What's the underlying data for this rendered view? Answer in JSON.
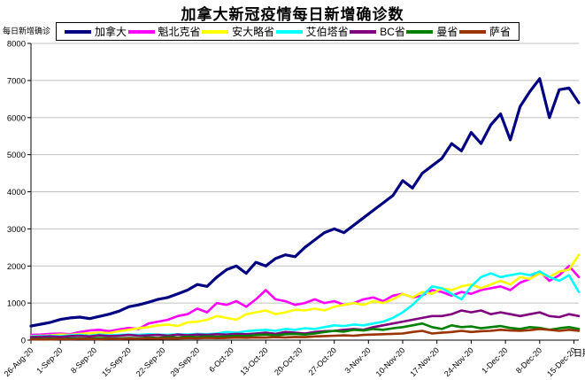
{
  "title": "加拿大新冠疫情每日新增确诊数",
  "y_axis": {
    "unit_label": "每日新增确诊",
    "min": 0,
    "max": 8000,
    "step": 1000
  },
  "x_axis": {
    "title": "日期",
    "tick_labels": [
      "26-Aug-20",
      "1-Sep-20",
      "8-Sep-20",
      "15-Sep-20",
      "22-Sep-20",
      "29-Sep-20",
      "6-Oct-20",
      "13-Oct-20",
      "20-Oct-20",
      "27-Oct-20",
      "3-Nov-20",
      "10-Nov-20",
      "17-Nov-20",
      "24-Nov-20",
      "1-Dec-20",
      "8-Dec-20",
      "15-Dec-20"
    ],
    "tick_days": [
      0,
      6,
      13,
      20,
      27,
      34,
      41,
      48,
      55,
      62,
      69,
      76,
      83,
      90,
      97,
      104,
      111
    ]
  },
  "colors": {
    "axis": "#000000",
    "gridline": "#c0c0c0",
    "background": "#ffffff"
  },
  "chart_data": {
    "type": "line",
    "title": "加拿大新冠疫情每日新增确诊数",
    "ylabel": "每日新增确诊",
    "xlabel": "日期",
    "ylim": [
      0,
      8000
    ],
    "grid": true,
    "legend_position": "top",
    "x_description": "day index, 0 = 26-Aug-20, values estimated every 2 days through 16-Dec-20",
    "days": [
      0,
      2,
      4,
      6,
      8,
      10,
      12,
      14,
      16,
      18,
      20,
      22,
      24,
      26,
      28,
      30,
      32,
      34,
      36,
      38,
      40,
      42,
      44,
      46,
      48,
      50,
      52,
      54,
      56,
      58,
      60,
      62,
      64,
      66,
      68,
      70,
      72,
      74,
      76,
      78,
      80,
      82,
      84,
      86,
      88,
      90,
      92,
      94,
      96,
      98,
      100,
      102,
      104,
      106,
      108,
      110,
      112
    ],
    "series": [
      {
        "key": "canada",
        "name": "加拿大",
        "color": "#000080",
        "values": [
          380,
          430,
          480,
          560,
          600,
          620,
          580,
          640,
          700,
          780,
          900,
          950,
          1020,
          1100,
          1150,
          1250,
          1350,
          1500,
          1450,
          1700,
          1900,
          2000,
          1800,
          2100,
          2000,
          2200,
          2300,
          2250,
          2500,
          2700,
          2900,
          3000,
          2900,
          3100,
          3300,
          3500,
          3700,
          3900,
          4300,
          4100,
          4500,
          4700,
          4900,
          5300,
          5100,
          5600,
          5300,
          5800,
          6100,
          5400,
          6300,
          6700,
          7050,
          6000,
          6750,
          6800,
          6400
        ]
      },
      {
        "key": "quebec",
        "name": "魁北克省",
        "color": "#ff00ff",
        "values": [
          140,
          150,
          170,
          180,
          160,
          220,
          260,
          280,
          240,
          290,
          330,
          300,
          450,
          500,
          550,
          650,
          700,
          850,
          750,
          1000,
          950,
          1050,
          900,
          1100,
          1350,
          1100,
          1050,
          950,
          1000,
          1100,
          1000,
          1050,
          950,
          1000,
          1100,
          1150,
          1050,
          1200,
          1250,
          1150,
          1200,
          1350,
          1300,
          1200,
          1300,
          1250,
          1350,
          1400,
          1450,
          1350,
          1550,
          1650,
          1850,
          1600,
          1750,
          2000,
          1700
        ]
      },
      {
        "key": "ontario",
        "name": "安大略省",
        "color": "#ffff00",
        "values": [
          110,
          120,
          130,
          150,
          140,
          170,
          185,
          200,
          190,
          240,
          280,
          320,
          350,
          400,
          420,
          380,
          480,
          500,
          550,
          650,
          600,
          550,
          700,
          750,
          800,
          700,
          750,
          820,
          800,
          850,
          800,
          900,
          950,
          1000,
          950,
          1050,
          1000,
          1100,
          1250,
          1150,
          1300,
          1250,
          1400,
          1350,
          1450,
          1500,
          1400,
          1500,
          1600,
          1500,
          1700,
          1650,
          1800,
          1700,
          1850,
          1900,
          2300
        ]
      },
      {
        "key": "alberta",
        "name": "艾伯塔省",
        "color": "#00ffff",
        "values": [
          100,
          110,
          120,
          105,
          130,
          140,
          120,
          150,
          130,
          140,
          150,
          140,
          160,
          150,
          140,
          160,
          150,
          170,
          160,
          180,
          220,
          200,
          240,
          260,
          280,
          250,
          300,
          280,
          320,
          300,
          350,
          400,
          380,
          420,
          400,
          450,
          500,
          600,
          750,
          950,
          1200,
          1450,
          1400,
          1250,
          1100,
          1450,
          1700,
          1800,
          1700,
          1750,
          1800,
          1750,
          1850,
          1700,
          1600,
          1750,
          1300
        ]
      },
      {
        "key": "bc",
        "name": "BC省",
        "color": "#800080",
        "values": [
          80,
          90,
          100,
          85,
          110,
          120,
          100,
          130,
          110,
          120,
          140,
          120,
          130,
          140,
          120,
          150,
          130,
          150,
          140,
          160,
          150,
          170,
          160,
          180,
          200,
          170,
          220,
          200,
          180,
          220,
          240,
          250,
          280,
          300,
          280,
          350,
          400,
          450,
          500,
          550,
          600,
          650,
          650,
          700,
          800,
          750,
          800,
          700,
          750,
          700,
          650,
          700,
          750,
          650,
          620,
          700,
          650
        ]
      },
      {
        "key": "manitoba",
        "name": "曼省",
        "color": "#008000",
        "values": [
          30,
          35,
          40,
          30,
          45,
          50,
          40,
          55,
          45,
          50,
          60,
          50,
          70,
          60,
          80,
          70,
          90,
          80,
          100,
          90,
          100,
          120,
          110,
          140,
          150,
          130,
          160,
          170,
          150,
          180,
          220,
          250,
          230,
          280,
          260,
          300,
          280,
          320,
          350,
          400,
          450,
          350,
          300,
          400,
          350,
          370,
          320,
          350,
          380,
          330,
          300,
          350,
          330,
          280,
          320,
          350,
          300
        ]
      },
      {
        "key": "saskatchewan",
        "name": "萨省",
        "color": "#993300",
        "values": [
          20,
          25,
          20,
          30,
          25,
          35,
          30,
          25,
          35,
          30,
          40,
          35,
          45,
          40,
          50,
          45,
          55,
          50,
          60,
          55,
          60,
          70,
          65,
          75,
          70,
          80,
          75,
          85,
          80,
          100,
          110,
          120,
          130,
          120,
          140,
          150,
          160,
          170,
          180,
          220,
          250,
          180,
          200,
          220,
          250,
          220,
          240,
          250,
          280,
          260,
          250,
          270,
          300,
          280,
          250,
          280,
          250
        ]
      }
    ]
  }
}
